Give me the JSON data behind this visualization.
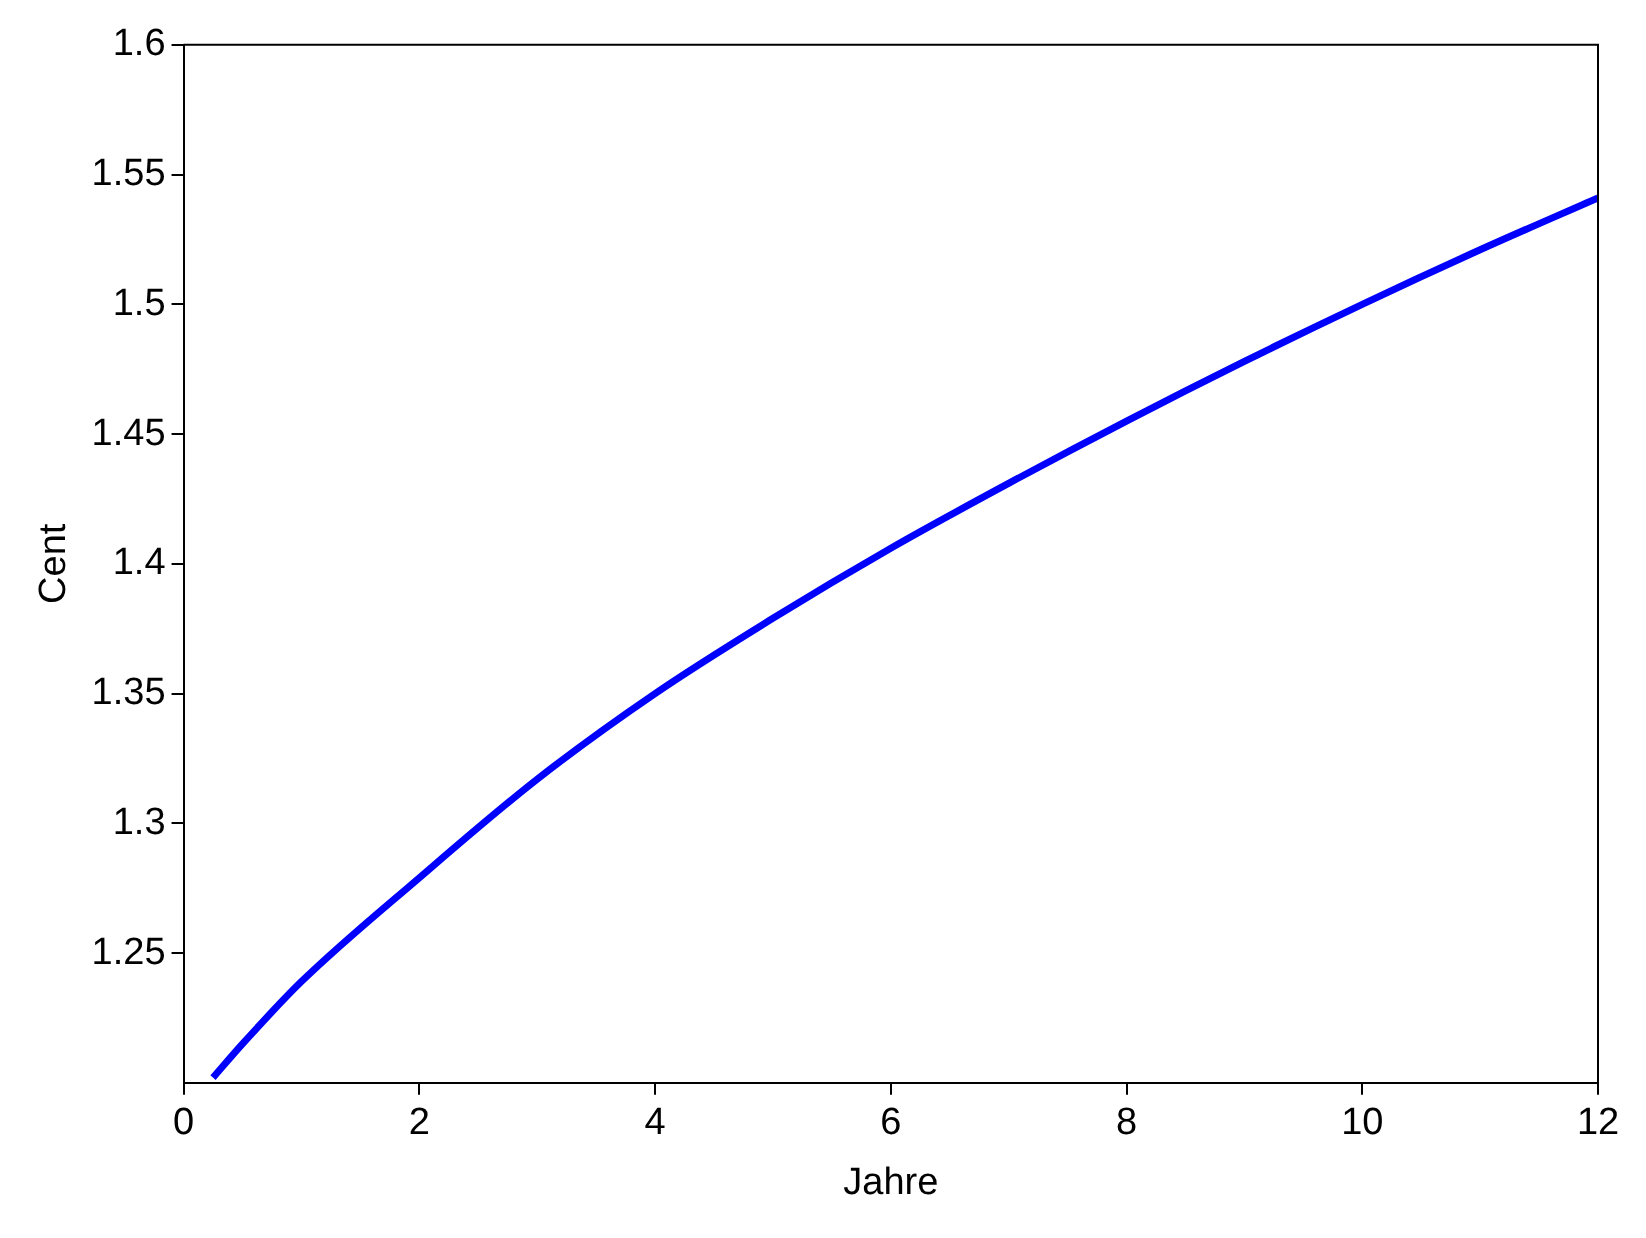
{
  "chart_data": {
    "type": "line",
    "xlabel": "Jahre",
    "ylabel": "Cent",
    "series": [
      {
        "color": "#0000ff",
        "x": [
          0.25,
          0.5,
          1,
          2,
          3,
          4,
          5,
          6,
          7,
          8,
          9,
          10,
          11,
          12
        ],
        "values": [
          1.202,
          1.215,
          1.239,
          1.279,
          1.317,
          1.35,
          1.379,
          1.406,
          1.431,
          1.455,
          1.478,
          1.5,
          1.521,
          1.541
        ]
      }
    ],
    "xlim": [
      0,
      12
    ],
    "xticks": [
      0,
      2,
      4,
      6,
      8,
      10,
      12
    ],
    "ylim": [
      1.2,
      1.6
    ],
    "yticks": [
      1.25,
      1.3,
      1.35,
      1.4,
      1.45,
      1.5,
      1.55,
      1.6
    ],
    "grid": false,
    "legend": false,
    "marker": "none",
    "line_style": "solid"
  }
}
